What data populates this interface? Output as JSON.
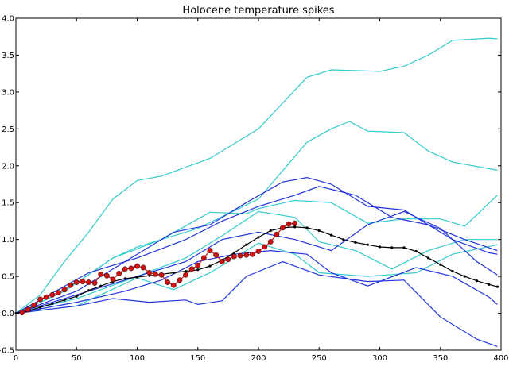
{
  "chart_data": {
    "type": "line",
    "title": "Holocene temperature spikes",
    "xlabel": "",
    "ylabel": "",
    "xlim": [
      0,
      400
    ],
    "ylim": [
      -0.5,
      4.0
    ],
    "xticks": [
      0,
      50,
      100,
      150,
      200,
      250,
      300,
      350,
      400
    ],
    "yticks": [
      -0.5,
      0.0,
      0.5,
      1.0,
      1.5,
      2.0,
      2.5,
      3.0,
      3.5,
      4.0
    ],
    "xtick_labels": [
      "0",
      "50",
      "100",
      "150",
      "200",
      "250",
      "300",
      "350",
      "400"
    ],
    "ytick_labels": [
      "−0.5",
      "0.0",
      "0.5",
      "1.0",
      "1.5",
      "2.0",
      "2.5",
      "3.0",
      "3.5",
      "4.0"
    ],
    "grid": false,
    "colors": {
      "cyan": "#33cccc",
      "blue": "#2233dd",
      "black": "#000000",
      "red": "#cc1111"
    },
    "series": [
      {
        "color": "#33cccc",
        "x": [
          0,
          20,
          40,
          60,
          80,
          100,
          120,
          160,
          200,
          240,
          260,
          300,
          320,
          340,
          360,
          390,
          397
        ],
        "y": [
          0,
          0.25,
          0.7,
          1.1,
          1.55,
          1.8,
          1.86,
          2.1,
          2.5,
          3.2,
          3.3,
          3.28,
          3.35,
          3.5,
          3.7,
          3.73,
          3.72
        ]
      },
      {
        "color": "#33cccc",
        "x": [
          0,
          40,
          80,
          100,
          150,
          200,
          240,
          260,
          275,
          290,
          320,
          340,
          360,
          397
        ],
        "y": [
          0,
          0.3,
          0.75,
          0.9,
          1.15,
          1.55,
          2.32,
          2.5,
          2.6,
          2.47,
          2.45,
          2.2,
          2.05,
          1.94
        ]
      },
      {
        "color": "#33cccc",
        "x": [
          0,
          40,
          80,
          120,
          160,
          190,
          200,
          230,
          260,
          290,
          320,
          350,
          370,
          397
        ],
        "y": [
          0,
          0.3,
          0.75,
          1.0,
          1.37,
          1.35,
          1.42,
          1.53,
          1.5,
          1.22,
          1.28,
          1.28,
          1.18,
          1.6
        ]
      },
      {
        "color": "#33cccc",
        "x": [
          0,
          50,
          100,
          140,
          170,
          200,
          230,
          250,
          280,
          310,
          340,
          370,
          397
        ],
        "y": [
          0,
          0.2,
          0.5,
          0.75,
          1.05,
          1.38,
          1.3,
          0.97,
          0.85,
          0.6,
          0.85,
          1.0,
          1.0
        ]
      },
      {
        "color": "#33cccc",
        "x": [
          0,
          50,
          100,
          130,
          160,
          200,
          230,
          250,
          290,
          330,
          360,
          397
        ],
        "y": [
          0,
          0.1,
          0.48,
          0.32,
          0.55,
          0.95,
          0.8,
          0.55,
          0.5,
          0.55,
          0.8,
          0.93
        ]
      },
      {
        "color": "#2233dd",
        "x": [
          0,
          50,
          90,
          130,
          160,
          190,
          220,
          240,
          260,
          290,
          320,
          360,
          390,
          397
        ],
        "y": [
          0,
          0.3,
          0.7,
          1.1,
          1.2,
          1.5,
          1.78,
          1.84,
          1.75,
          1.45,
          1.4,
          1.0,
          0.82,
          0.8
        ]
      },
      {
        "color": "#2233dd",
        "x": [
          0,
          60,
          100,
          140,
          170,
          200,
          230,
          250,
          280,
          310,
          340,
          370,
          397
        ],
        "y": [
          0,
          0.55,
          0.75,
          1.0,
          1.25,
          1.45,
          1.6,
          1.72,
          1.6,
          1.3,
          1.2,
          1.0,
          0.85
        ]
      },
      {
        "color": "#2233dd",
        "x": [
          0,
          50,
          100,
          140,
          170,
          200,
          230,
          260,
          290,
          320,
          350,
          380,
          397
        ],
        "y": [
          0,
          0.25,
          0.5,
          0.7,
          1.0,
          1.1,
          1.0,
          0.85,
          1.2,
          1.38,
          1.15,
          0.7,
          0.52
        ]
      },
      {
        "color": "#2233dd",
        "x": [
          0,
          50,
          90,
          120,
          150,
          180,
          210,
          240,
          260,
          290,
          330,
          360,
          390,
          397
        ],
        "y": [
          0,
          0.15,
          0.3,
          0.45,
          0.7,
          0.8,
          0.85,
          0.8,
          0.55,
          0.37,
          0.62,
          0.5,
          0.22,
          0.12
        ]
      },
      {
        "color": "#2233dd",
        "x": [
          0,
          50,
          80,
          110,
          140,
          150,
          170,
          190,
          220,
          250,
          290,
          320,
          350,
          380,
          397
        ],
        "y": [
          0,
          0.1,
          0.2,
          0.15,
          0.18,
          0.12,
          0.17,
          0.5,
          0.7,
          0.52,
          0.43,
          0.45,
          -0.05,
          -0.35,
          -0.45
        ]
      },
      {
        "color": "#000000",
        "markers": "dot",
        "x": [
          0,
          10,
          20,
          30,
          40,
          50,
          60,
          70,
          80,
          90,
          100,
          110,
          120,
          130,
          140,
          150,
          160,
          170,
          180,
          190,
          200,
          210,
          220,
          230,
          240,
          250,
          260,
          270,
          280,
          290,
          300,
          310,
          320,
          330,
          340,
          350,
          360,
          370,
          380,
          390,
          397
        ],
        "y": [
          0,
          0.03,
          0.08,
          0.13,
          0.18,
          0.23,
          0.31,
          0.37,
          0.43,
          0.47,
          0.49,
          0.51,
          0.53,
          0.55,
          0.57,
          0.59,
          0.64,
          0.72,
          0.82,
          0.93,
          1.03,
          1.12,
          1.16,
          1.17,
          1.16,
          1.12,
          1.06,
          1.0,
          0.96,
          0.93,
          0.9,
          0.89,
          0.89,
          0.84,
          0.75,
          0.66,
          0.57,
          0.5,
          0.44,
          0.39,
          0.36
        ]
      },
      {
        "color": "#cc1111",
        "markers": "circle",
        "x": [
          5,
          10,
          15,
          20,
          25,
          30,
          35,
          40,
          45,
          50,
          55,
          60,
          65,
          70,
          75,
          80,
          85,
          90,
          95,
          100,
          105,
          110,
          115,
          120,
          125,
          130,
          135,
          140,
          145,
          150,
          155,
          160,
          165,
          170,
          175,
          180,
          185,
          190,
          195,
          200,
          205,
          210,
          215,
          220,
          225,
          230
        ],
        "y": [
          0.01,
          0.05,
          0.11,
          0.19,
          0.22,
          0.25,
          0.28,
          0.32,
          0.38,
          0.42,
          0.43,
          0.42,
          0.41,
          0.53,
          0.51,
          0.46,
          0.54,
          0.6,
          0.61,
          0.64,
          0.62,
          0.55,
          0.53,
          0.52,
          0.42,
          0.38,
          0.45,
          0.52,
          0.6,
          0.65,
          0.75,
          0.85,
          0.79,
          0.7,
          0.73,
          0.77,
          0.78,
          0.79,
          0.8,
          0.84,
          0.9,
          0.97,
          1.07,
          1.16,
          1.21,
          1.22
        ]
      }
    ]
  }
}
